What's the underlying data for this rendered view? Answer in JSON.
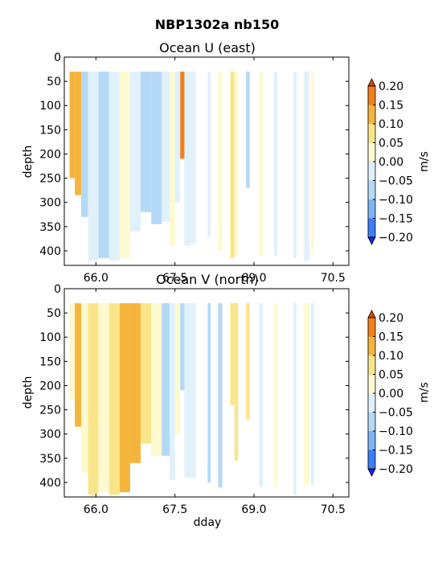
{
  "figure": {
    "title": "NBP1302a nb150"
  },
  "chart_data": [
    {
      "type": "heatmap",
      "title": "Ocean U (east)",
      "xlabel": "",
      "ylabel": "depth",
      "xlim": [
        65.4,
        70.8
      ],
      "ylim": [
        430,
        0
      ],
      "x_ticks": [
        "66.0",
        "67.5",
        "69.0",
        "70.5"
      ],
      "y_ticks": [
        "0",
        "50",
        "100",
        "150",
        "200",
        "250",
        "300",
        "350",
        "400"
      ],
      "x_tick_values": [
        66.0,
        67.5,
        69.0,
        70.5
      ],
      "y_tick_values": [
        0,
        50,
        100,
        150,
        200,
        250,
        300,
        350,
        400
      ],
      "colorbar": {
        "label": "m/s",
        "levels": [
          -0.2,
          -0.15,
          -0.1,
          -0.05,
          0.0,
          0.05,
          0.1,
          0.15,
          0.2
        ],
        "tick_labels": [
          "0.20",
          "0.15",
          "0.10",
          "0.05",
          "0.00",
          "−0.05",
          "−0.10",
          "−0.15",
          "−0.20"
        ],
        "extend": "both",
        "colors": [
          "#1e1ef0",
          "#3c7ef5",
          "#7cb4f5",
          "#b4d9f7",
          "#e0f1fb",
          "#fdfad0",
          "#fbe58a",
          "#f5b53c",
          "#f07f1e",
          "#d9460e"
        ]
      },
      "segments": [
        {
          "x0": 65.5,
          "x1": 65.6,
          "ytop": 30,
          "ybot": 250,
          "value": 0.12
        },
        {
          "x0": 65.6,
          "x1": 65.72,
          "ytop": 30,
          "ybot": 285,
          "value": 0.13
        },
        {
          "x0": 65.72,
          "x1": 65.85,
          "ytop": 30,
          "ybot": 330,
          "value": -0.06
        },
        {
          "x0": 65.85,
          "x1": 66.05,
          "ytop": 30,
          "ybot": 420,
          "value": -0.04
        },
        {
          "x0": 66.05,
          "x1": 66.25,
          "ytop": 30,
          "ybot": 415,
          "value": -0.07
        },
        {
          "x0": 66.25,
          "x1": 66.45,
          "ytop": 30,
          "ybot": 420,
          "value": -0.03
        },
        {
          "x0": 66.45,
          "x1": 66.65,
          "ytop": 30,
          "ybot": 415,
          "value": 0.03
        },
        {
          "x0": 66.65,
          "x1": 66.85,
          "ytop": 30,
          "ybot": 360,
          "value": -0.04
        },
        {
          "x0": 66.85,
          "x1": 67.05,
          "ytop": 30,
          "ybot": 320,
          "value": -0.06
        },
        {
          "x0": 67.05,
          "x1": 67.25,
          "ytop": 30,
          "ybot": 345,
          "value": -0.08
        },
        {
          "x0": 67.25,
          "x1": 67.4,
          "ytop": 30,
          "ybot": 340,
          "value": -0.03
        },
        {
          "x0": 67.4,
          "x1": 67.5,
          "ytop": 30,
          "ybot": 390,
          "value": 0.03
        },
        {
          "x0": 67.5,
          "x1": 67.6,
          "ytop": 30,
          "ybot": 300,
          "value": -0.02
        },
        {
          "x0": 67.6,
          "x1": 67.68,
          "ytop": 30,
          "ybot": 210,
          "value": 0.18
        },
        {
          "x0": 67.68,
          "x1": 67.8,
          "ytop": 30,
          "ybot": 390,
          "value": -0.03
        },
        {
          "x0": 67.8,
          "x1": 67.9,
          "ytop": 30,
          "ybot": 385,
          "value": -0.03
        },
        {
          "x0": 68.12,
          "x1": 68.18,
          "ytop": 30,
          "ybot": 370,
          "value": -0.03
        },
        {
          "x0": 68.32,
          "x1": 68.4,
          "ytop": 30,
          "ybot": 400,
          "value": 0.03
        },
        {
          "x0": 68.55,
          "x1": 68.63,
          "ytop": 30,
          "ybot": 415,
          "value": 0.06
        },
        {
          "x0": 68.63,
          "x1": 68.7,
          "ytop": 30,
          "ybot": 410,
          "value": 0.03
        },
        {
          "x0": 68.85,
          "x1": 68.92,
          "ytop": 30,
          "ybot": 270,
          "value": -0.08
        },
        {
          "x0": 69.1,
          "x1": 69.17,
          "ytop": 30,
          "ybot": 410,
          "value": 0.03
        },
        {
          "x0": 69.38,
          "x1": 69.44,
          "ytop": 30,
          "ybot": 410,
          "value": -0.03
        },
        {
          "x0": 69.75,
          "x1": 69.81,
          "ytop": 30,
          "ybot": 415,
          "value": -0.03
        },
        {
          "x0": 69.95,
          "x1": 70.05,
          "ytop": 30,
          "ybot": 420,
          "value": -0.04
        },
        {
          "x0": 70.08,
          "x1": 70.14,
          "ytop": 30,
          "ybot": 405,
          "value": 0.04
        }
      ]
    },
    {
      "type": "heatmap",
      "title": "Ocean V (north)",
      "xlabel": "dday",
      "ylabel": "depth",
      "xlim": [
        65.4,
        70.8
      ],
      "ylim": [
        430,
        0
      ],
      "x_ticks": [
        "66.0",
        "67.5",
        "69.0",
        "70.5"
      ],
      "y_ticks": [
        "0",
        "50",
        "100",
        "150",
        "200",
        "250",
        "300",
        "350",
        "400"
      ],
      "x_tick_values": [
        66.0,
        67.5,
        69.0,
        70.5
      ],
      "y_tick_values": [
        0,
        50,
        100,
        150,
        200,
        250,
        300,
        350,
        400
      ],
      "colorbar": {
        "label": "m/s",
        "levels": [
          -0.2,
          -0.15,
          -0.1,
          -0.05,
          0.0,
          0.05,
          0.1,
          0.15,
          0.2
        ],
        "tick_labels": [
          "0.20",
          "0.15",
          "0.10",
          "0.05",
          "0.00",
          "−0.05",
          "−0.10",
          "−0.15",
          "−0.20"
        ],
        "extend": "both",
        "colors": [
          "#1e1ef0",
          "#3c7ef5",
          "#7cb4f5",
          "#b4d9f7",
          "#e0f1fb",
          "#fdfad0",
          "#fbe58a",
          "#f5b53c",
          "#f07f1e",
          "#d9460e"
        ]
      },
      "segments": [
        {
          "x0": 65.5,
          "x1": 65.6,
          "ytop": 30,
          "ybot": 230,
          "value": 0.04
        },
        {
          "x0": 65.6,
          "x1": 65.72,
          "ytop": 30,
          "ybot": 285,
          "value": 0.12
        },
        {
          "x0": 65.72,
          "x1": 65.85,
          "ytop": 30,
          "ybot": 380,
          "value": 0.04
        },
        {
          "x0": 65.85,
          "x1": 66.05,
          "ytop": 30,
          "ybot": 425,
          "value": 0.07
        },
        {
          "x0": 66.05,
          "x1": 66.25,
          "ytop": 30,
          "ybot": 420,
          "value": 0.03
        },
        {
          "x0": 66.25,
          "x1": 66.45,
          "ytop": 30,
          "ybot": 425,
          "value": 0.07
        },
        {
          "x0": 66.45,
          "x1": 66.65,
          "ytop": 30,
          "ybot": 420,
          "value": 0.11
        },
        {
          "x0": 66.65,
          "x1": 66.85,
          "ytop": 30,
          "ybot": 360,
          "value": 0.12
        },
        {
          "x0": 66.85,
          "x1": 67.05,
          "ytop": 30,
          "ybot": 320,
          "value": 0.07
        },
        {
          "x0": 67.05,
          "x1": 67.25,
          "ytop": 30,
          "ybot": 345,
          "value": 0.03
        },
        {
          "x0": 67.25,
          "x1": 67.4,
          "ytop": 30,
          "ybot": 345,
          "value": -0.06
        },
        {
          "x0": 67.4,
          "x1": 67.5,
          "ytop": 30,
          "ybot": 395,
          "value": -0.03
        },
        {
          "x0": 67.5,
          "x1": 67.6,
          "ytop": 30,
          "ybot": 300,
          "value": 0.03
        },
        {
          "x0": 67.6,
          "x1": 67.68,
          "ytop": 30,
          "ybot": 210,
          "value": -0.07
        },
        {
          "x0": 67.68,
          "x1": 67.8,
          "ytop": 30,
          "ybot": 390,
          "value": -0.03
        },
        {
          "x0": 67.8,
          "x1": 67.9,
          "ytop": 30,
          "ybot": 390,
          "value": -0.03
        },
        {
          "x0": 68.12,
          "x1": 68.18,
          "ytop": 30,
          "ybot": 400,
          "value": -0.07
        },
        {
          "x0": 68.32,
          "x1": 68.4,
          "ytop": 30,
          "ybot": 410,
          "value": -0.06
        },
        {
          "x0": 68.55,
          "x1": 68.63,
          "ytop": 30,
          "ybot": 240,
          "value": 0.07
        },
        {
          "x0": 68.63,
          "x1": 68.7,
          "ytop": 30,
          "ybot": 355,
          "value": 0.07
        },
        {
          "x0": 68.85,
          "x1": 68.92,
          "ytop": 30,
          "ybot": 270,
          "value": 0.07
        },
        {
          "x0": 69.1,
          "x1": 69.17,
          "ytop": 30,
          "ybot": 410,
          "value": -0.03
        },
        {
          "x0": 69.38,
          "x1": 69.44,
          "ytop": 30,
          "ybot": 410,
          "value": 0.03
        },
        {
          "x0": 69.75,
          "x1": 69.81,
          "ytop": 30,
          "ybot": 425,
          "value": -0.03
        },
        {
          "x0": 69.95,
          "x1": 70.05,
          "ytop": 30,
          "ybot": 405,
          "value": 0.03
        },
        {
          "x0": 70.08,
          "x1": 70.14,
          "ytop": 30,
          "ybot": 405,
          "value": -0.02
        }
      ]
    }
  ]
}
